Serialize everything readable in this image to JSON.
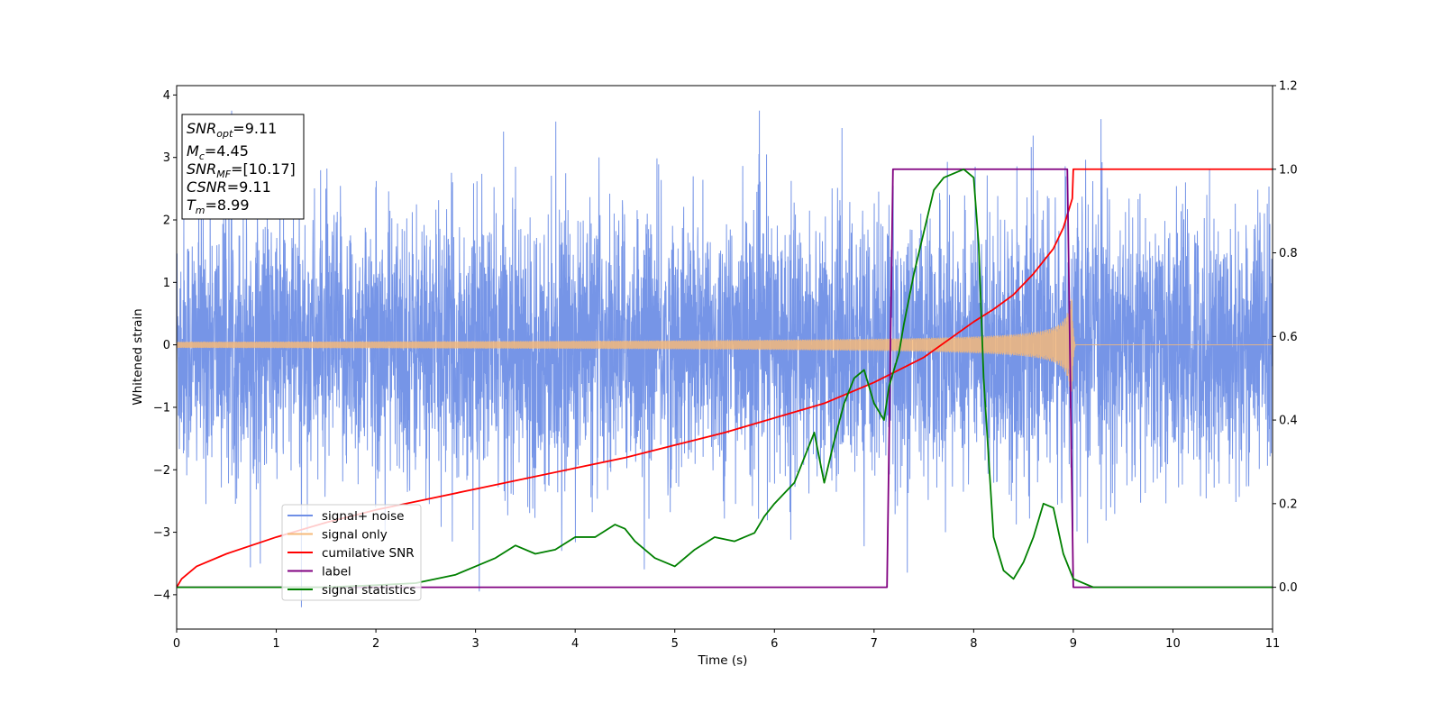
{
  "chart_data": {
    "type": "line",
    "xlabel": "Time (s)",
    "ylabel_left": "Whitened strain",
    "ylabel_right": "",
    "xlim": [
      0,
      11
    ],
    "ylim_left": [
      -4.55,
      4.15
    ],
    "ylim_right": [
      -0.1,
      1.2
    ],
    "x_ticks": [
      "0",
      "1",
      "2",
      "3",
      "4",
      "5",
      "6",
      "7",
      "8",
      "9",
      "10",
      "11"
    ],
    "y_ticks_left": [
      "4",
      "3",
      "2",
      "1",
      "0",
      "−1",
      "−2",
      "−3",
      "−4"
    ],
    "y_ticks_right": [
      "1.2",
      "1.0",
      "0.8",
      "0.6",
      "0.4",
      "0.2",
      "0.0"
    ],
    "y_tick_values_left": [
      4,
      3,
      2,
      1,
      0,
      -1,
      -2,
      -3,
      -4
    ],
    "y_tick_values_right": [
      1.2,
      1.0,
      0.8,
      0.6,
      0.4,
      0.2,
      0.0
    ],
    "grid": false,
    "legend_position": "lower-left",
    "info_box": {
      "snr_opt": {
        "main": "SNR",
        "sub": "opt",
        "value": "=9.11"
      },
      "mc": {
        "main": "M",
        "sub": "c",
        "value": "=4.45"
      },
      "snr_mf": {
        "main": "SNR",
        "sub": "MF",
        "value": "=[10.17]"
      },
      "csnr": {
        "main": "CSNR",
        "value": "=9.11"
      },
      "tm": {
        "main": "T",
        "sub": "m",
        "value": "=8.99"
      }
    },
    "series": [
      {
        "name": "signal+ noise",
        "color": "#6f8fe6",
        "axis": "left",
        "kind": "noise",
        "description_values": {
          "std": 1.0,
          "x_range": [
            0,
            11
          ]
        }
      },
      {
        "name": "signal only",
        "color": "#f5b97a",
        "axis": "left",
        "kind": "chirp",
        "description_values": {
          "merger_time": 8.99,
          "amplitude_start": 0.05,
          "amplitude_peak": 0.75
        }
      },
      {
        "name": "cumilative SNR",
        "color": "#ff0000",
        "axis": "right",
        "x": [
          0,
          0.05,
          0.2,
          0.5,
          1,
          1.5,
          2,
          2.5,
          3,
          3.5,
          4,
          4.5,
          5,
          5.5,
          6,
          6.5,
          7,
          7.5,
          8,
          8.2,
          8.4,
          8.6,
          8.8,
          8.9,
          8.99,
          9,
          11
        ],
        "y": [
          0,
          0.02,
          0.05,
          0.08,
          0.12,
          0.155,
          0.185,
          0.21,
          0.235,
          0.26,
          0.285,
          0.31,
          0.34,
          0.37,
          0.405,
          0.44,
          0.49,
          0.55,
          0.635,
          0.665,
          0.7,
          0.75,
          0.81,
          0.86,
          0.93,
          1.0,
          1.0
        ]
      },
      {
        "name": "label",
        "color": "#800080",
        "axis": "right",
        "x": [
          0,
          7.13,
          7.19,
          8.94,
          9.0,
          11
        ],
        "y": [
          0,
          0,
          1,
          1,
          0,
          0
        ]
      },
      {
        "name": "signal statistics",
        "color": "#008000",
        "axis": "right",
        "x": [
          0,
          0.5,
          1,
          1.5,
          2,
          2.4,
          2.6,
          2.8,
          3.0,
          3.2,
          3.4,
          3.6,
          3.8,
          4.0,
          4.2,
          4.4,
          4.5,
          4.6,
          4.8,
          5.0,
          5.2,
          5.4,
          5.6,
          5.8,
          5.9,
          6.0,
          6.2,
          6.4,
          6.5,
          6.6,
          6.7,
          6.8,
          6.9,
          7.0,
          7.05,
          7.1,
          7.15,
          7.25,
          7.3,
          7.4,
          7.5,
          7.6,
          7.7,
          7.8,
          7.9,
          8.0,
          8.05,
          8.1,
          8.2,
          8.3,
          8.4,
          8.5,
          8.6,
          8.7,
          8.8,
          8.9,
          9.0,
          9.2,
          11
        ],
        "y": [
          0.0,
          0.0,
          0.0,
          0.0,
          0.005,
          0.01,
          0.02,
          0.03,
          0.05,
          0.07,
          0.1,
          0.08,
          0.09,
          0.12,
          0.12,
          0.15,
          0.14,
          0.11,
          0.07,
          0.05,
          0.09,
          0.12,
          0.11,
          0.13,
          0.17,
          0.2,
          0.25,
          0.37,
          0.25,
          0.35,
          0.44,
          0.5,
          0.52,
          0.44,
          0.42,
          0.4,
          0.48,
          0.56,
          0.63,
          0.75,
          0.85,
          0.95,
          0.98,
          0.99,
          1.0,
          0.98,
          0.82,
          0.5,
          0.12,
          0.04,
          0.02,
          0.06,
          0.12,
          0.2,
          0.19,
          0.08,
          0.02,
          0.0,
          0.0
        ]
      }
    ]
  }
}
